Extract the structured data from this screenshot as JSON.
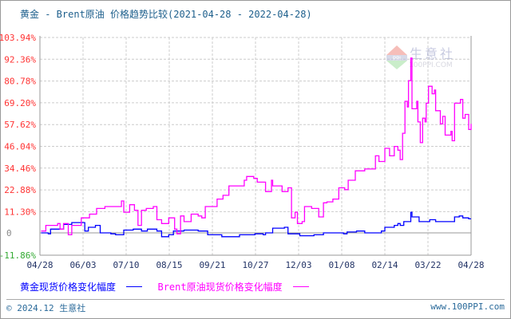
{
  "title": "黄金 - Brent原油 价格趋势比较(2021-04-28 - 2022-04-28)",
  "watermark": {
    "brand": "生意社",
    "site": "100PPI.COM",
    "badge": "PPI"
  },
  "footer": {
    "copyright": "© 2024.12 生意社",
    "url": "www.100PPI.com"
  },
  "colors": {
    "gold": "#0000ff",
    "brent": "#ff00ff",
    "tick_positive": "#ff3333",
    "tick_zero": "#888888",
    "tick_negative": "#33aa33",
    "x_tick": "#223366",
    "grid": "#cccccc"
  },
  "chart_data": {
    "type": "line",
    "title": "黄金 - Brent原油 价格趋势比较(2021-04-28 - 2022-04-28)",
    "xlim": [
      "2021-04-28",
      "2022-04-28"
    ],
    "ylim": [
      -11.86,
      103.94
    ],
    "y_ticks": [
      "103.94%",
      "92.36%",
      "80.78%",
      "69.20%",
      "57.62%",
      "46.04%",
      "34.46%",
      "22.88%",
      "11.30%",
      "0",
      "-11.86%"
    ],
    "y_tick_values": [
      103.94,
      92.36,
      80.78,
      69.2,
      57.62,
      46.04,
      34.46,
      22.88,
      11.3,
      0,
      -11.86
    ],
    "x_ticks": [
      "04/28",
      "06/03",
      "07/10",
      "08/15",
      "09/21",
      "10/27",
      "12/03",
      "01/08",
      "02/14",
      "03/22",
      "04/28"
    ],
    "grid": true,
    "legend_position": "bottom",
    "series": [
      {
        "name": "黄金现货价格变化幅度",
        "color": "#0000ff",
        "x": [
          "2021-04-29",
          "2021-05-05",
          "2021-05-07",
          "2021-05-14",
          "2021-05-18",
          "2021-05-25",
          "2021-06-01",
          "2021-06-05",
          "2021-06-08",
          "2021-06-14",
          "2021-06-18",
          "2021-06-27",
          "2021-07-01",
          "2021-07-08",
          "2021-07-16",
          "2021-07-23",
          "2021-07-28",
          "2021-08-05",
          "2021-08-09",
          "2021-08-15",
          "2021-08-19",
          "2021-08-28",
          "2021-09-05",
          "2021-09-09",
          "2021-09-17",
          "2021-09-29",
          "2021-10-06",
          "2021-10-14",
          "2021-10-18",
          "2021-10-27",
          "2021-11-03",
          "2021-11-05",
          "2021-11-11",
          "2021-11-21",
          "2021-11-24",
          "2021-12-04",
          "2021-12-16",
          "2021-12-24",
          "2022-01-03",
          "2022-01-10",
          "2022-01-13",
          "2022-01-21",
          "2022-01-28",
          "2022-02-08",
          "2022-02-11",
          "2022-02-14",
          "2022-02-22",
          "2022-02-25",
          "2022-02-27",
          "2022-03-02",
          "2022-03-05",
          "2022-03-08",
          "2022-03-09",
          "2022-03-15",
          "2022-03-24",
          "2022-03-29",
          "2022-04-09",
          "2022-04-14",
          "2022-04-18",
          "2022-04-21",
          "2022-04-26",
          "2022-04-28"
        ],
        "values": [
          0,
          -0.5,
          2,
          2,
          4.5,
          5.5,
          5.5,
          1,
          3,
          4,
          0,
          -0.5,
          -1,
          1.5,
          2,
          1,
          2,
          1,
          -2,
          -1,
          1,
          1.5,
          1.5,
          1,
          -1,
          -2,
          -2,
          -1,
          -1,
          -0.5,
          -1,
          0,
          2.5,
          3,
          -0.5,
          -1.5,
          -1,
          0,
          0,
          -0.5,
          0.5,
          1,
          0,
          0,
          1,
          3,
          4,
          5,
          4,
          6,
          6,
          11,
          8.5,
          6,
          7,
          6,
          6,
          8.5,
          9,
          8,
          7.5,
          7.5
        ]
      },
      {
        "name": "Brent原油现货价格变化幅度",
        "color": "#ff00ff",
        "x": [
          "2021-04-29",
          "2021-05-03",
          "2021-05-13",
          "2021-05-15",
          "2021-05-18",
          "2021-05-22",
          "2021-05-25",
          "2021-06-02",
          "2021-06-09",
          "2021-06-15",
          "2021-06-22",
          "2021-06-27",
          "2021-07-06",
          "2021-07-08",
          "2021-07-13",
          "2021-07-17",
          "2021-07-20",
          "2021-07-23",
          "2021-07-27",
          "2021-08-02",
          "2021-08-05",
          "2021-08-09",
          "2021-08-15",
          "2021-08-20",
          "2021-08-22",
          "2021-08-25",
          "2021-08-28",
          "2021-09-03",
          "2021-09-09",
          "2021-09-12",
          "2021-09-15",
          "2021-09-21",
          "2021-09-25",
          "2021-09-30",
          "2021-10-05",
          "2021-10-12",
          "2021-10-18",
          "2021-10-20",
          "2021-10-26",
          "2021-10-29",
          "2021-11-02",
          "2021-11-05",
          "2021-11-10",
          "2021-11-11",
          "2021-11-17",
          "2021-11-19",
          "2021-11-24",
          "2021-11-27",
          "2021-11-30",
          "2021-12-02",
          "2021-12-06",
          "2021-12-08",
          "2021-12-14",
          "2021-12-20",
          "2021-12-24",
          "2021-12-27",
          "2022-01-01",
          "2022-01-06",
          "2022-01-11",
          "2022-01-14",
          "2022-01-20",
          "2022-01-28",
          "2022-02-04",
          "2022-02-06",
          "2022-02-09",
          "2022-02-14",
          "2022-02-18",
          "2022-02-22",
          "2022-02-25",
          "2022-02-27",
          "2022-03-01",
          "2022-03-03",
          "2022-03-05",
          "2022-03-06",
          "2022-03-08",
          "2022-03-09",
          "2022-03-13",
          "2022-03-14",
          "2022-03-16",
          "2022-03-18",
          "2022-03-20",
          "2022-03-21",
          "2022-03-23",
          "2022-03-26",
          "2022-03-28",
          "2022-03-29",
          "2022-04-02",
          "2022-04-04",
          "2022-04-06",
          "2022-04-11",
          "2022-04-12",
          "2022-04-14",
          "2022-04-19",
          "2022-04-21",
          "2022-04-23",
          "2022-04-26",
          "2022-04-28"
        ],
        "values": [
          1,
          4,
          5,
          2,
          5,
          -1,
          4,
          8,
          10,
          13,
          14,
          14,
          17,
          11,
          15,
          12,
          4,
          12,
          13,
          14,
          7,
          5,
          8,
          2,
          -0.5,
          9,
          6,
          10,
          9,
          8,
          14,
          14,
          18,
          20,
          25,
          25,
          28,
          30,
          29,
          27,
          27,
          22,
          28,
          25,
          25,
          22,
          24,
          8,
          11,
          5,
          6,
          14,
          13,
          8.5,
          16,
          16.5,
          18,
          24,
          23,
          28,
          33,
          34,
          34,
          41,
          38,
          45,
          41,
          46,
          44,
          39,
          53,
          70,
          67,
          81,
          93,
          66,
          70,
          59,
          48,
          61,
          59,
          69,
          78,
          74,
          76,
          65,
          58,
          62,
          52,
          54,
          49,
          69,
          71,
          61,
          63,
          55,
          58
        ]
      }
    ]
  }
}
